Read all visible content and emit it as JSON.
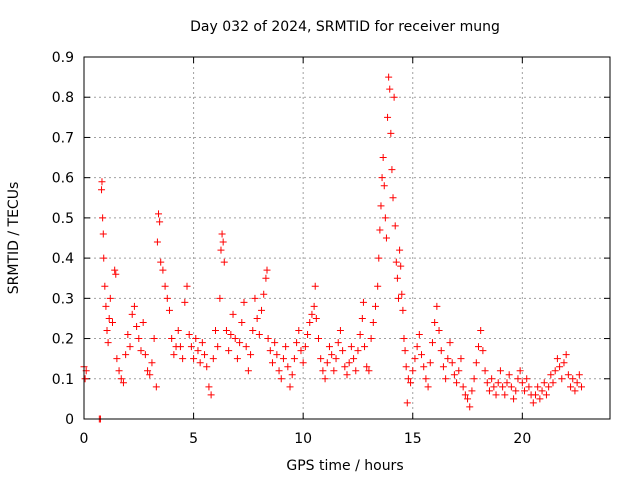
{
  "chart_data": {
    "type": "scatter",
    "title": "Day 032 of 2024, SRMTID for receiver mung",
    "xlabel": "GPS time / hours",
    "ylabel": "SRMTID / TECUs",
    "xlim": [
      0,
      24
    ],
    "ylim": [
      0,
      0.9
    ],
    "x_ticks": [
      0,
      5,
      10,
      15,
      20
    ],
    "y_ticks": [
      0,
      0.1,
      0.2,
      0.3,
      0.4,
      0.5,
      0.6,
      0.7,
      0.8,
      0.9
    ],
    "x_tick_labels": [
      "0",
      "5",
      "10",
      "15",
      "20"
    ],
    "y_tick_labels": [
      "0",
      "0.1",
      "0.2",
      "0.3",
      "0.4",
      "0.5",
      "0.6",
      "0.7",
      "0.8",
      "0.9"
    ],
    "grid": true,
    "marker": "+",
    "color": "#ff0000",
    "series": [
      {
        "name": "SRMTID",
        "points": [
          [
            0.0,
            0.13
          ],
          [
            0.05,
            0.1
          ],
          [
            0.1,
            0.12
          ],
          [
            0.7,
            0.0
          ],
          [
            0.75,
            0.0
          ],
          [
            0.8,
            0.57
          ],
          [
            0.82,
            0.59
          ],
          [
            0.85,
            0.5
          ],
          [
            0.88,
            0.46
          ],
          [
            0.9,
            0.4
          ],
          [
            0.95,
            0.33
          ],
          [
            1.0,
            0.28
          ],
          [
            1.05,
            0.22
          ],
          [
            1.1,
            0.19
          ],
          [
            1.15,
            0.25
          ],
          [
            1.2,
            0.3
          ],
          [
            1.3,
            0.24
          ],
          [
            1.4,
            0.37
          ],
          [
            1.45,
            0.36
          ],
          [
            1.5,
            0.15
          ],
          [
            1.6,
            0.12
          ],
          [
            1.7,
            0.1
          ],
          [
            1.8,
            0.09
          ],
          [
            1.9,
            0.16
          ],
          [
            2.0,
            0.21
          ],
          [
            2.1,
            0.18
          ],
          [
            2.2,
            0.26
          ],
          [
            2.3,
            0.28
          ],
          [
            2.4,
            0.23
          ],
          [
            2.5,
            0.2
          ],
          [
            2.6,
            0.17
          ],
          [
            2.7,
            0.24
          ],
          [
            2.8,
            0.16
          ],
          [
            2.9,
            0.12
          ],
          [
            3.0,
            0.11
          ],
          [
            3.1,
            0.14
          ],
          [
            3.2,
            0.2
          ],
          [
            3.3,
            0.08
          ],
          [
            3.35,
            0.44
          ],
          [
            3.4,
            0.51
          ],
          [
            3.45,
            0.49
          ],
          [
            3.5,
            0.39
          ],
          [
            3.6,
            0.37
          ],
          [
            3.7,
            0.33
          ],
          [
            3.8,
            0.3
          ],
          [
            3.9,
            0.27
          ],
          [
            4.0,
            0.2
          ],
          [
            4.1,
            0.16
          ],
          [
            4.2,
            0.18
          ],
          [
            4.3,
            0.22
          ],
          [
            4.4,
            0.18
          ],
          [
            4.5,
            0.15
          ],
          [
            4.6,
            0.29
          ],
          [
            4.7,
            0.33
          ],
          [
            4.8,
            0.21
          ],
          [
            4.9,
            0.18
          ],
          [
            5.0,
            0.15
          ],
          [
            5.1,
            0.2
          ],
          [
            5.2,
            0.17
          ],
          [
            5.3,
            0.14
          ],
          [
            5.4,
            0.19
          ],
          [
            5.5,
            0.16
          ],
          [
            5.6,
            0.13
          ],
          [
            5.7,
            0.08
          ],
          [
            5.8,
            0.06
          ],
          [
            5.9,
            0.15
          ],
          [
            6.0,
            0.22
          ],
          [
            6.1,
            0.18
          ],
          [
            6.2,
            0.3
          ],
          [
            6.25,
            0.42
          ],
          [
            6.3,
            0.46
          ],
          [
            6.35,
            0.44
          ],
          [
            6.4,
            0.39
          ],
          [
            6.5,
            0.22
          ],
          [
            6.6,
            0.17
          ],
          [
            6.7,
            0.21
          ],
          [
            6.8,
            0.26
          ],
          [
            6.9,
            0.2
          ],
          [
            7.0,
            0.15
          ],
          [
            7.1,
            0.19
          ],
          [
            7.2,
            0.24
          ],
          [
            7.3,
            0.29
          ],
          [
            7.4,
            0.18
          ],
          [
            7.5,
            0.12
          ],
          [
            7.6,
            0.16
          ],
          [
            7.7,
            0.22
          ],
          [
            7.8,
            0.3
          ],
          [
            7.9,
            0.25
          ],
          [
            8.0,
            0.21
          ],
          [
            8.1,
            0.27
          ],
          [
            8.2,
            0.31
          ],
          [
            8.3,
            0.35
          ],
          [
            8.35,
            0.37
          ],
          [
            8.4,
            0.2
          ],
          [
            8.5,
            0.17
          ],
          [
            8.6,
            0.14
          ],
          [
            8.7,
            0.19
          ],
          [
            8.8,
            0.16
          ],
          [
            8.9,
            0.12
          ],
          [
            9.0,
            0.1
          ],
          [
            9.1,
            0.15
          ],
          [
            9.2,
            0.18
          ],
          [
            9.3,
            0.13
          ],
          [
            9.4,
            0.08
          ],
          [
            9.5,
            0.11
          ],
          [
            9.6,
            0.15
          ],
          [
            9.7,
            0.19
          ],
          [
            9.8,
            0.22
          ],
          [
            9.9,
            0.17
          ],
          [
            10.0,
            0.14
          ],
          [
            10.1,
            0.18
          ],
          [
            10.2,
            0.21
          ],
          [
            10.3,
            0.24
          ],
          [
            10.4,
            0.26
          ],
          [
            10.5,
            0.28
          ],
          [
            10.55,
            0.33
          ],
          [
            10.6,
            0.25
          ],
          [
            10.7,
            0.2
          ],
          [
            10.8,
            0.15
          ],
          [
            10.9,
            0.12
          ],
          [
            11.0,
            0.1
          ],
          [
            11.1,
            0.14
          ],
          [
            11.2,
            0.18
          ],
          [
            11.3,
            0.16
          ],
          [
            11.4,
            0.12
          ],
          [
            11.5,
            0.15
          ],
          [
            11.6,
            0.19
          ],
          [
            11.7,
            0.22
          ],
          [
            11.8,
            0.17
          ],
          [
            11.9,
            0.13
          ],
          [
            12.0,
            0.11
          ],
          [
            12.1,
            0.14
          ],
          [
            12.2,
            0.18
          ],
          [
            12.3,
            0.15
          ],
          [
            12.4,
            0.12
          ],
          [
            12.5,
            0.17
          ],
          [
            12.6,
            0.21
          ],
          [
            12.7,
            0.25
          ],
          [
            12.75,
            0.29
          ],
          [
            12.8,
            0.18
          ],
          [
            12.9,
            0.13
          ],
          [
            13.0,
            0.12
          ],
          [
            13.1,
            0.2
          ],
          [
            13.2,
            0.24
          ],
          [
            13.3,
            0.28
          ],
          [
            13.4,
            0.33
          ],
          [
            13.45,
            0.4
          ],
          [
            13.5,
            0.47
          ],
          [
            13.55,
            0.53
          ],
          [
            13.6,
            0.6
          ],
          [
            13.65,
            0.65
          ],
          [
            13.7,
            0.58
          ],
          [
            13.75,
            0.5
          ],
          [
            13.8,
            0.45
          ],
          [
            13.85,
            0.75
          ],
          [
            13.9,
            0.85
          ],
          [
            13.95,
            0.82
          ],
          [
            14.0,
            0.71
          ],
          [
            14.05,
            0.62
          ],
          [
            14.1,
            0.55
          ],
          [
            14.15,
            0.8
          ],
          [
            14.2,
            0.48
          ],
          [
            14.25,
            0.39
          ],
          [
            14.3,
            0.35
          ],
          [
            14.35,
            0.3
          ],
          [
            14.4,
            0.42
          ],
          [
            14.45,
            0.38
          ],
          [
            14.5,
            0.31
          ],
          [
            14.55,
            0.27
          ],
          [
            14.6,
            0.2
          ],
          [
            14.65,
            0.17
          ],
          [
            14.7,
            0.13
          ],
          [
            14.75,
            0.04
          ],
          [
            14.8,
            0.1
          ],
          [
            14.9,
            0.09
          ],
          [
            15.0,
            0.12
          ],
          [
            15.1,
            0.15
          ],
          [
            15.2,
            0.18
          ],
          [
            15.3,
            0.21
          ],
          [
            15.4,
            0.16
          ],
          [
            15.5,
            0.13
          ],
          [
            15.6,
            0.1
          ],
          [
            15.7,
            0.08
          ],
          [
            15.8,
            0.14
          ],
          [
            15.9,
            0.19
          ],
          [
            16.0,
            0.24
          ],
          [
            16.1,
            0.28
          ],
          [
            16.2,
            0.22
          ],
          [
            16.3,
            0.17
          ],
          [
            16.4,
            0.13
          ],
          [
            16.5,
            0.1
          ],
          [
            16.6,
            0.15
          ],
          [
            16.7,
            0.19
          ],
          [
            16.8,
            0.14
          ],
          [
            16.9,
            0.11
          ],
          [
            17.0,
            0.09
          ],
          [
            17.1,
            0.12
          ],
          [
            17.2,
            0.15
          ],
          [
            17.3,
            0.08
          ],
          [
            17.4,
            0.06
          ],
          [
            17.5,
            0.05
          ],
          [
            17.6,
            0.03
          ],
          [
            17.7,
            0.07
          ],
          [
            17.8,
            0.1
          ],
          [
            17.9,
            0.14
          ],
          [
            18.0,
            0.18
          ],
          [
            18.1,
            0.22
          ],
          [
            18.2,
            0.17
          ],
          [
            18.3,
            0.12
          ],
          [
            18.4,
            0.09
          ],
          [
            18.5,
            0.07
          ],
          [
            18.6,
            0.1
          ],
          [
            18.7,
            0.08
          ],
          [
            18.8,
            0.06
          ],
          [
            18.9,
            0.09
          ],
          [
            19.0,
            0.12
          ],
          [
            19.1,
            0.08
          ],
          [
            19.2,
            0.06
          ],
          [
            19.3,
            0.09
          ],
          [
            19.4,
            0.11
          ],
          [
            19.5,
            0.08
          ],
          [
            19.6,
            0.05
          ],
          [
            19.7,
            0.07
          ],
          [
            19.8,
            0.1
          ],
          [
            19.9,
            0.12
          ],
          [
            20.0,
            0.09
          ],
          [
            20.1,
            0.07
          ],
          [
            20.2,
            0.1
          ],
          [
            20.3,
            0.08
          ],
          [
            20.4,
            0.06
          ],
          [
            20.5,
            0.04
          ],
          [
            20.6,
            0.06
          ],
          [
            20.7,
            0.08
          ],
          [
            20.8,
            0.05
          ],
          [
            20.9,
            0.07
          ],
          [
            21.0,
            0.09
          ],
          [
            21.1,
            0.06
          ],
          [
            21.2,
            0.08
          ],
          [
            21.3,
            0.11
          ],
          [
            21.4,
            0.09
          ],
          [
            21.5,
            0.12
          ],
          [
            21.6,
            0.15
          ],
          [
            21.7,
            0.13
          ],
          [
            21.8,
            0.1
          ],
          [
            21.9,
            0.14
          ],
          [
            22.0,
            0.16
          ],
          [
            22.1,
            0.11
          ],
          [
            22.2,
            0.08
          ],
          [
            22.3,
            0.1
          ],
          [
            22.4,
            0.07
          ],
          [
            22.5,
            0.09
          ],
          [
            22.6,
            0.11
          ],
          [
            22.7,
            0.08
          ]
        ]
      }
    ]
  }
}
